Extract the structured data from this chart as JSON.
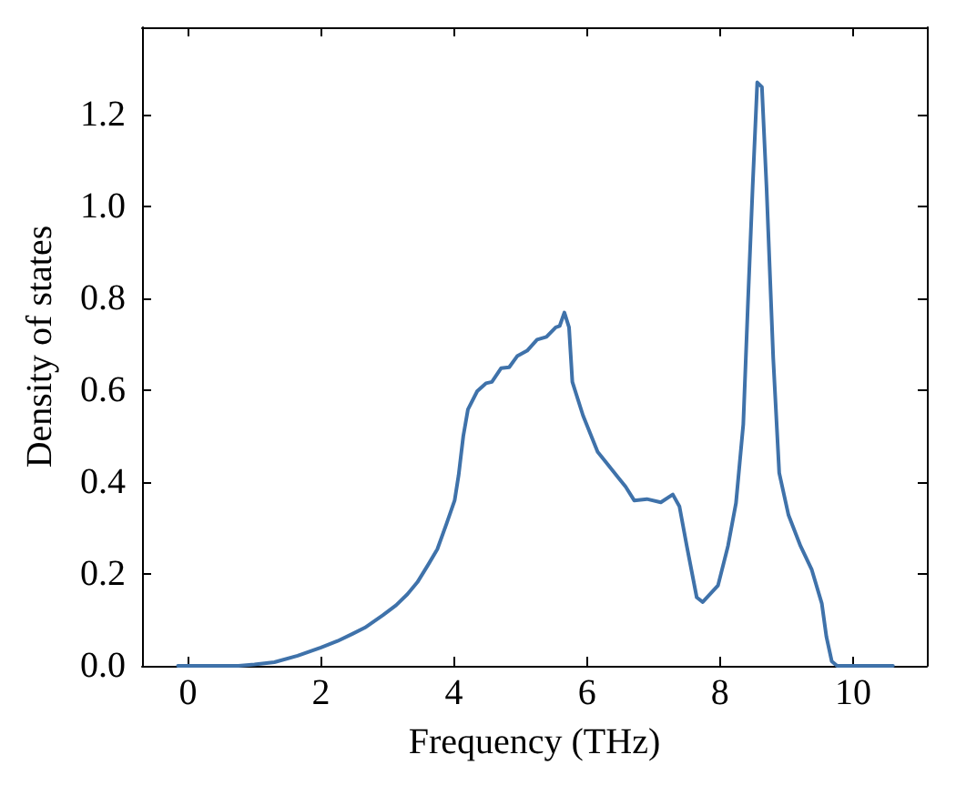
{
  "chart_data": {
    "type": "line",
    "xlabel": "Frequency (THz)",
    "ylabel": "Density of states",
    "x": [
      -0.15,
      0.76,
      1.0,
      1.3,
      1.65,
      2.0,
      2.25,
      2.48,
      2.66,
      2.93,
      3.13,
      3.3,
      3.45,
      3.62,
      3.75,
      3.89,
      4.01,
      4.07,
      4.14,
      4.21,
      4.35,
      4.48,
      4.57,
      4.71,
      4.83,
      4.95,
      5.1,
      5.25,
      5.39,
      5.53,
      5.59,
      5.66,
      5.73,
      5.78,
      5.94,
      6.16,
      6.48,
      6.58,
      6.71,
      6.9,
      7.11,
      7.29,
      7.39,
      7.5,
      7.65,
      7.74,
      7.97,
      8.12,
      8.24,
      8.35,
      8.42,
      8.49,
      8.56,
      8.63,
      8.7,
      8.8,
      8.89,
      9.03,
      9.21,
      9.38,
      9.53,
      9.6,
      9.68,
      9.76,
      10.6
    ],
    "values": [
      0,
      0,
      0.003,
      0.008,
      0.022,
      0.04,
      0.054,
      0.07,
      0.083,
      0.11,
      0.132,
      0.156,
      0.182,
      0.222,
      0.254,
      0.31,
      0.36,
      0.415,
      0.5,
      0.558,
      0.598,
      0.615,
      0.618,
      0.648,
      0.65,
      0.674,
      0.686,
      0.71,
      0.716,
      0.737,
      0.74,
      0.769,
      0.737,
      0.618,
      0.545,
      0.466,
      0.408,
      0.39,
      0.36,
      0.363,
      0.356,
      0.373,
      0.347,
      0.261,
      0.149,
      0.139,
      0.175,
      0.261,
      0.354,
      0.526,
      0.79,
      1.04,
      1.27,
      1.26,
      1.04,
      0.67,
      0.42,
      0.328,
      0.261,
      0.209,
      0.136,
      0.063,
      0.01,
      0,
      0
    ],
    "color": "#3f72aa",
    "xlim": [
      -0.69,
      11.11
    ],
    "ylim": [
      0,
      1.39
    ],
    "xticks": [
      0,
      2,
      4,
      6,
      8,
      10
    ],
    "yticks": [
      {
        "value": 0,
        "label": "0.0"
      },
      0.2,
      0.4,
      0.6,
      0.8,
      {
        "value": 1,
        "label": "1.0"
      },
      1.2
    ],
    "grid": false,
    "marker": "none",
    "line_style": "solid"
  }
}
